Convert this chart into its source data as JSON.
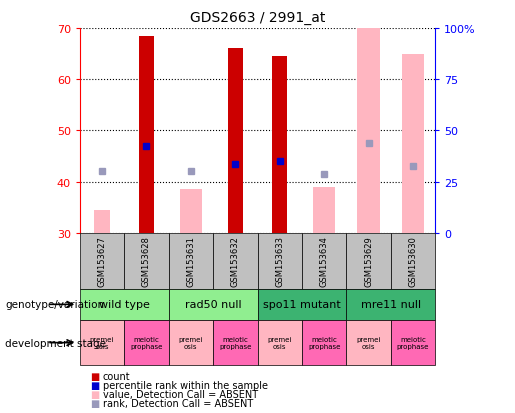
{
  "title": "GDS2663 / 2991_at",
  "samples": [
    "GSM153627",
    "GSM153628",
    "GSM153631",
    "GSM153632",
    "GSM153633",
    "GSM153634",
    "GSM153629",
    "GSM153630"
  ],
  "count_values": [
    null,
    68.5,
    null,
    66.0,
    64.5,
    null,
    null,
    null
  ],
  "count_absent_values": [
    34.5,
    null,
    null,
    null,
    null,
    null,
    null,
    null
  ],
  "rank_present": [
    null,
    47.0,
    null,
    43.5,
    44.0,
    null,
    null,
    null
  ],
  "rank_absent_marker": [
    42.0,
    null,
    42.0,
    null,
    null,
    41.5,
    47.5,
    43.0
  ],
  "value_absent_values": [
    null,
    null,
    38.5,
    null,
    null,
    39.0,
    70.0,
    65.0
  ],
  "ylim": [
    30,
    70
  ],
  "yticks": [
    30,
    40,
    50,
    60,
    70
  ],
  "y2lim": [
    0,
    100
  ],
  "y2ticks": [
    0,
    25,
    50,
    75,
    100
  ],
  "genotype_groups": [
    {
      "label": "wild type",
      "start": 0,
      "end": 2,
      "color": "#90EE90"
    },
    {
      "label": "rad50 null",
      "start": 2,
      "end": 4,
      "color": "#90EE90"
    },
    {
      "label": "spo11 mutant",
      "start": 4,
      "end": 6,
      "color": "#3CB371"
    },
    {
      "label": "mre11 null",
      "start": 6,
      "end": 8,
      "color": "#3CB371"
    }
  ],
  "dev_stage_labels": [
    "premei\nosis",
    "meiotic\nprophase",
    "premei\nosis",
    "meiotic\nprophase",
    "premei\nosis",
    "meiotic\nprophase",
    "premei\nosis",
    "meiotic\nprophase"
  ],
  "dev_stage_colors": [
    "#FFB6C1",
    "#FF69B4",
    "#FFB6C1",
    "#FF69B4",
    "#FFB6C1",
    "#FF69B4",
    "#FFB6C1",
    "#FF69B4"
  ],
  "bar_width": 0.35,
  "absent_bar_width": 0.5,
  "count_color": "#CC0000",
  "rank_color": "#0000CC",
  "value_absent_color": "#FFB6C1",
  "rank_absent_color": "#9999BB",
  "sample_bg_color": "#C0C0C0",
  "legend_items": [
    {
      "color": "#CC0000",
      "label": "count"
    },
    {
      "color": "#0000CC",
      "label": "percentile rank within the sample"
    },
    {
      "color": "#FFB6C1",
      "label": "value, Detection Call = ABSENT"
    },
    {
      "color": "#9999BB",
      "label": "rank, Detection Call = ABSENT"
    }
  ]
}
